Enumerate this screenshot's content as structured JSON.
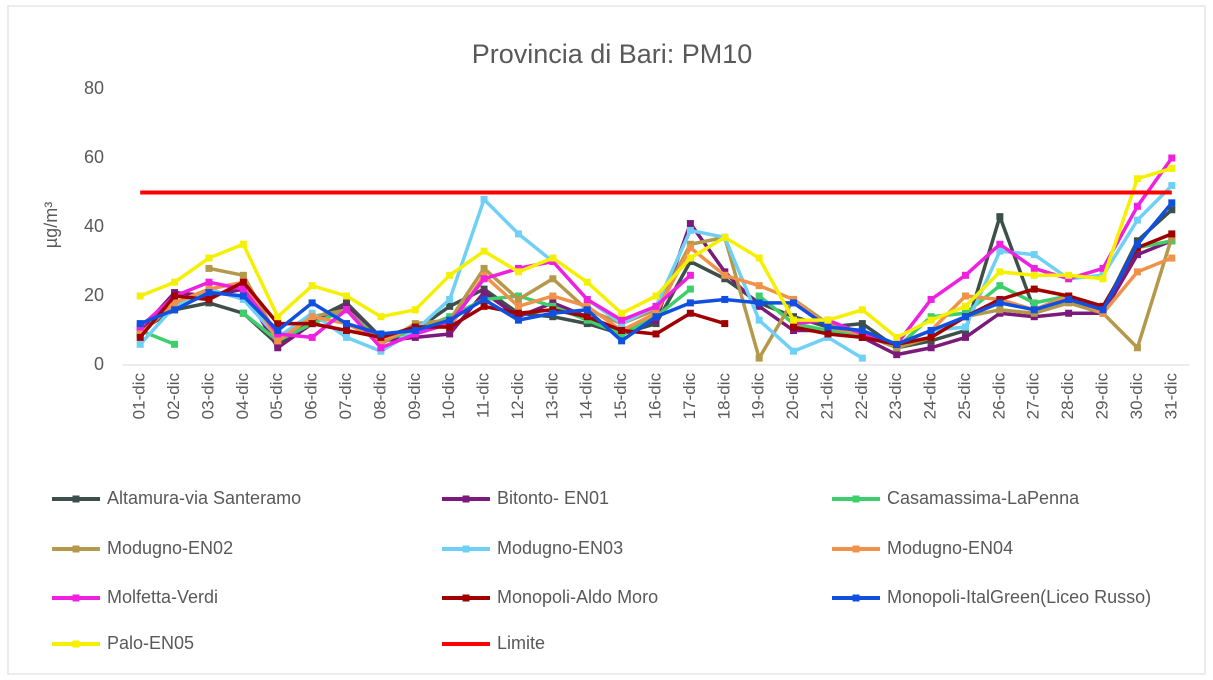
{
  "chart_data": {
    "type": "line",
    "title": "Provincia di Bari: PM10",
    "y_label": "µg/m³",
    "categories": [
      "01-dic",
      "02-dic",
      "03-dic",
      "04-dic",
      "05-dic",
      "06-dic",
      "07-dic",
      "08-dic",
      "09-dic",
      "10-dic",
      "11-dic",
      "12-dic",
      "13-dic",
      "14-dic",
      "15-dic",
      "16-dic",
      "17-dic",
      "18-dic",
      "19-dic",
      "20-dic",
      "21-dic",
      "22-dic",
      "23-dic",
      "24-dic",
      "25-dic",
      "26-dic",
      "27-dic",
      "28-dic",
      "29-dic",
      "30-dic",
      "31-dic"
    ],
    "ylim": [
      0,
      80
    ],
    "yticks": [
      0,
      20,
      40,
      60,
      80
    ],
    "grid": false,
    "series": [
      {
        "name": "Altamura-via Santeramo",
        "color": "#3d4f4a",
        "values": [
          10,
          16,
          18,
          15,
          6,
          13,
          18,
          8,
          10,
          17,
          22,
          15,
          14,
          12,
          9,
          12,
          30,
          25,
          18,
          14,
          11,
          12,
          5,
          7,
          10,
          43,
          16,
          20,
          16,
          36,
          45
        ]
      },
      {
        "name": "Bitonto- EN01",
        "color": "#7b1a7b",
        "values": [
          10,
          21,
          20,
          22,
          5,
          12,
          17,
          7,
          8,
          9,
          21,
          14,
          18,
          14,
          10,
          13,
          41,
          27,
          17,
          10,
          10,
          8,
          3,
          5,
          8,
          15,
          14,
          15,
          15,
          32,
          36
        ]
      },
      {
        "name": "Casamassima-LaPenna",
        "color": "#3fcf6a",
        "values": [
          10,
          6,
          null,
          15,
          7,
          12,
          16,
          7,
          10,
          14,
          19,
          20,
          17,
          13,
          9,
          14,
          22,
          null,
          20,
          12,
          10,
          9,
          5,
          14,
          15,
          23,
          18,
          20,
          17,
          34,
          36
        ]
      },
      {
        "name": "Modugno-EN02",
        "color": "#b5994a",
        "values": [
          null,
          null,
          28,
          26,
          8,
          14,
          16,
          6,
          12,
          13,
          28,
          19,
          25,
          16,
          12,
          16,
          35,
          37,
          2,
          19,
          12,
          9,
          5,
          8,
          14,
          16,
          15,
          18,
          15,
          5,
          37
        ]
      },
      {
        "name": "Modugno-EN03",
        "color": "#6fd0f5",
        "values": [
          6,
          17,
          22,
          19,
          8,
          15,
          8,
          4,
          10,
          19,
          48,
          38,
          30,
          19,
          12,
          17,
          39,
          37,
          13,
          4,
          8,
          2,
          null,
          10,
          11,
          33,
          32,
          25,
          26,
          42,
          52
        ]
      },
      {
        "name": "Modugno-EN04",
        "color": "#f0924a",
        "values": [
          9,
          18,
          22,
          24,
          7,
          14,
          12,
          7,
          11,
          11,
          26,
          17,
          20,
          17,
          10,
          15,
          34,
          26,
          23,
          19,
          11,
          9,
          6,
          10,
          20,
          19,
          16,
          20,
          15,
          27,
          31
        ]
      },
      {
        "name": "Molfetta-Verdi",
        "color": "#f020e0",
        "values": [
          11,
          20,
          24,
          22,
          9,
          8,
          16,
          5,
          9,
          12,
          25,
          28,
          30,
          19,
          13,
          17,
          26,
          null,
          null,
          12,
          13,
          9,
          6,
          19,
          26,
          35,
          28,
          25,
          28,
          46,
          60
        ]
      },
      {
        "name": "Monopoli-Aldo Moro",
        "color": "#a00000",
        "values": [
          8,
          20,
          19,
          24,
          12,
          12,
          10,
          8,
          11,
          11,
          17,
          15,
          16,
          14,
          10,
          9,
          15,
          12,
          null,
          11,
          9,
          8,
          6,
          8,
          14,
          19,
          22,
          20,
          17,
          34,
          38
        ]
      },
      {
        "name": "Monopoli-ItalGreen(Liceo Russo)",
        "color": "#1050e0",
        "values": [
          12,
          16,
          21,
          20,
          10,
          18,
          12,
          9,
          10,
          13,
          19,
          13,
          15,
          16,
          7,
          14,
          18,
          19,
          18,
          18,
          11,
          10,
          6,
          10,
          14,
          18,
          16,
          19,
          16,
          35,
          47
        ]
      },
      {
        "name": "Palo-EN05",
        "color": "#f5f000",
        "values": [
          20,
          24,
          31,
          35,
          14,
          23,
          20,
          14,
          16,
          26,
          33,
          27,
          31,
          24,
          15,
          20,
          31,
          37,
          31,
          13,
          13,
          16,
          8,
          13,
          17,
          27,
          26,
          26,
          25,
          54,
          57
        ]
      },
      {
        "name": "Limite",
        "color": "#ff0000",
        "values": [
          50,
          50,
          50,
          50,
          50,
          50,
          50,
          50,
          50,
          50,
          50,
          50,
          50,
          50,
          50,
          50,
          50,
          50,
          50,
          50,
          50,
          50,
          50,
          50,
          50,
          50,
          50,
          50,
          50,
          50,
          50
        ]
      }
    ]
  }
}
